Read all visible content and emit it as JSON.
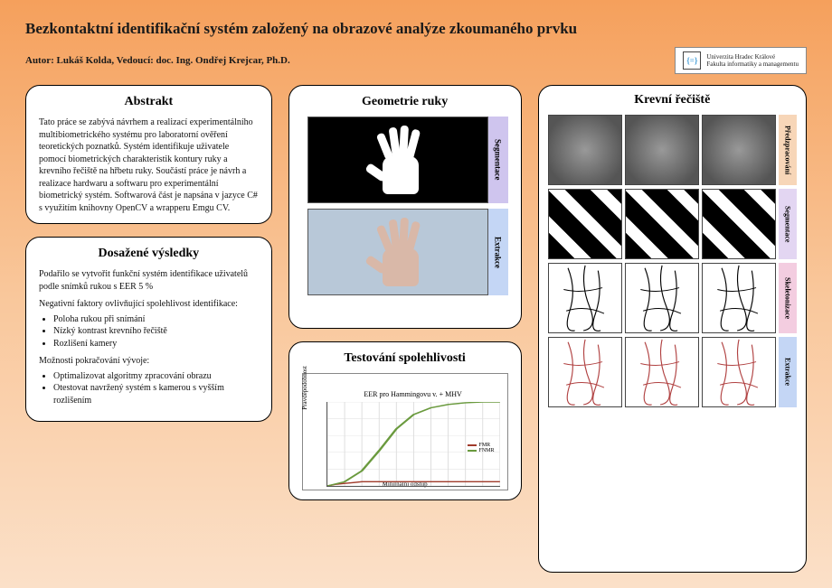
{
  "title": "Bezkontaktní identifikační systém založený na obrazové analýze zkoumaného prvku",
  "author_line": "Autor: Lukáš Kolda, Vedoucí: doc. Ing. Ondřej Krejcar, Ph.D.",
  "logo": {
    "line1": "Univerzita Hradec Králové",
    "line2": "Fakulta informatiky a managementu"
  },
  "abstract": {
    "heading": "Abstrakt",
    "text": "Tato práce se zabývá návrhem a realizací experimentálního multibiometrického systému pro laboratorní ověření teoretických poznatků. Systém identifikuje uživatele pomocí biometrických charakteristik kontury ruky a krevního řečiště na hřbetu ruky. Součástí práce je návrh a realizace hardwaru a softwaru pro experimentální biometrický systém. Softwarová část je napsána v jazyce C# s využitím knihovny OpenCV a wrapperu Emgu CV."
  },
  "results": {
    "heading": "Dosažené výsledky",
    "intro": "Podařilo se vytvořit funkční systém identifikace uživatelů podle snímků rukou s EER 5 %",
    "neg_label": "Negativní faktory ovlivňující spolehlivost identifikace:",
    "neg_items": [
      "Poloha rukou při snímání",
      "Nízký kontrast krevního řečiště",
      "Rozlišení kamery"
    ],
    "future_label": "Možnosti pokračování vývoje:",
    "future_items": [
      "Optimalizovat algoritmy zpracování obrazu",
      "Otestovat navržený systém s kamerou s vyšším rozlišením"
    ]
  },
  "hand_geom": {
    "heading": "Geometrie ruky",
    "rows": [
      {
        "label": "Segmentace",
        "bg": "label-bg-purple"
      },
      {
        "label": "Extrakce",
        "bg": "label-bg-blue"
      }
    ]
  },
  "reliability": {
    "heading": "Testování spolehlivosti",
    "chart_title": "EER pro Hammingovu v. + MHV",
    "ylabel": "Pravděpodobnost",
    "xlabel": "Minimální odstup",
    "series": [
      {
        "name": "FMR",
        "color": "#a03a2a",
        "points": [
          [
            0,
            0
          ],
          [
            0.05,
            0.02
          ],
          [
            0.1,
            0.03
          ],
          [
            0.15,
            0.04
          ],
          [
            0.2,
            0.05
          ],
          [
            0.3,
            0.05
          ],
          [
            0.4,
            0.05
          ],
          [
            0.5,
            0.05
          ],
          [
            0.6,
            0.05
          ],
          [
            0.8,
            0.05
          ],
          [
            1,
            0.05
          ]
        ]
      },
      {
        "name": "FNMR",
        "color": "#6a9a3e",
        "points": [
          [
            0,
            0
          ],
          [
            0.1,
            0.05
          ],
          [
            0.2,
            0.18
          ],
          [
            0.3,
            0.42
          ],
          [
            0.4,
            0.68
          ],
          [
            0.5,
            0.85
          ],
          [
            0.6,
            0.93
          ],
          [
            0.7,
            0.97
          ],
          [
            0.8,
            0.99
          ],
          [
            0.9,
            1
          ],
          [
            1,
            1
          ]
        ]
      }
    ],
    "xlim": [
      0,
      1
    ],
    "ylim": [
      0,
      1
    ],
    "xtick_step": 0.1,
    "ytick_step": 0.2
  },
  "blood": {
    "heading": "Krevní řečiště",
    "rows": [
      {
        "label": "Předzpracování",
        "lb": "lb-orange",
        "mode": "gray"
      },
      {
        "label": "Segmentace",
        "lb": "lb-lav",
        "mode": "bw"
      },
      {
        "label": "Skeletonizace",
        "lb": "lb-pink",
        "mode": "line",
        "stroke": "#000000"
      },
      {
        "label": "Extrakce",
        "lb": "lb-blue",
        "mode": "line",
        "stroke": "#b04040"
      }
    ]
  },
  "colors": {
    "bg_top": "#f5a05c",
    "bg_mid": "#f9c79b",
    "bg_bot": "#fbe0c8",
    "panel_bg": "#ffffff",
    "panel_border": "#000000"
  }
}
